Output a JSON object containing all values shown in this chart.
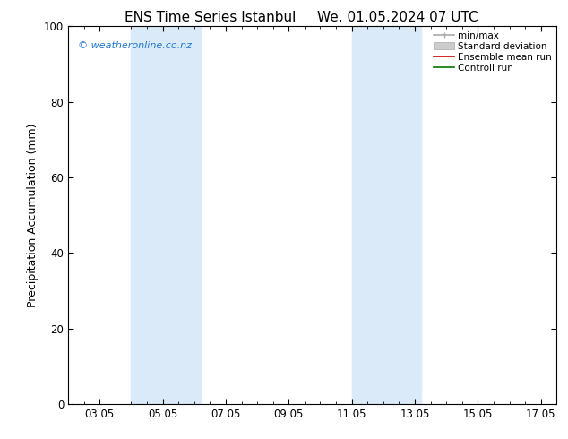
{
  "title_left": "ENS Time Series Istanbul",
  "title_right": "We. 01.05.2024 07 UTC",
  "ylabel": "Precipitation Accumulation (mm)",
  "ylim": [
    0,
    100
  ],
  "yticks": [
    0,
    20,
    40,
    60,
    80,
    100
  ],
  "xtick_labels": [
    "03.05",
    "05.05",
    "07.05",
    "09.05",
    "11.05",
    "13.05",
    "15.05",
    "17.05"
  ],
  "xtick_positions": [
    3,
    5,
    7,
    9,
    11,
    13,
    15,
    17
  ],
  "xlim": [
    2.0,
    17.5
  ],
  "shaded_bands": [
    {
      "x_start": 4.0,
      "x_end": 5.0
    },
    {
      "x_start": 5.0,
      "x_end": 6.2
    },
    {
      "x_start": 11.0,
      "x_end": 12.0
    },
    {
      "x_start": 12.0,
      "x_end": 13.2
    }
  ],
  "band_color": "#daeaf8",
  "watermark_text": "© weatheronline.co.nz",
  "watermark_color": "#2277cc",
  "legend_labels": [
    "min/max",
    "Standard deviation",
    "Ensemble mean run",
    "Controll run"
  ],
  "legend_colors": [
    "#aaaaaa",
    "#cccccc",
    "#cc0000",
    "#007700"
  ],
  "background_color": "#ffffff",
  "title_fontsize": 11,
  "axis_fontsize": 9,
  "tick_fontsize": 8.5
}
